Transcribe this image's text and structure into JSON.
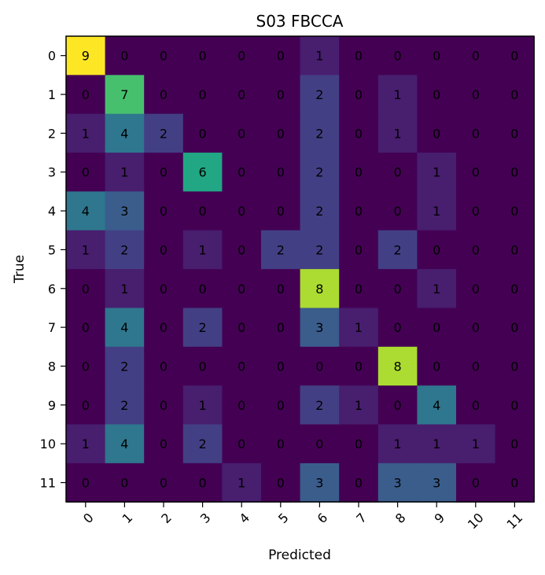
{
  "chart_data": {
    "type": "heatmap",
    "title": "S03 FBCCA",
    "xlabel": "Predicted",
    "ylabel": "True",
    "x_categories": [
      "0",
      "1",
      "2",
      "3",
      "4",
      "5",
      "6",
      "7",
      "8",
      "9",
      "10",
      "11"
    ],
    "y_categories": [
      "0",
      "1",
      "2",
      "3",
      "4",
      "5",
      "6",
      "7",
      "8",
      "9",
      "10",
      "11"
    ],
    "values": [
      [
        9,
        0,
        0,
        0,
        0,
        0,
        1,
        0,
        0,
        0,
        0,
        0
      ],
      [
        0,
        7,
        0,
        0,
        0,
        0,
        2,
        0,
        1,
        0,
        0,
        0
      ],
      [
        1,
        4,
        2,
        0,
        0,
        0,
        2,
        0,
        1,
        0,
        0,
        0
      ],
      [
        0,
        1,
        0,
        6,
        0,
        0,
        2,
        0,
        0,
        1,
        0,
        0
      ],
      [
        4,
        3,
        0,
        0,
        0,
        0,
        2,
        0,
        0,
        1,
        0,
        0
      ],
      [
        1,
        2,
        0,
        1,
        0,
        2,
        2,
        0,
        2,
        0,
        0,
        0
      ],
      [
        0,
        1,
        0,
        0,
        0,
        0,
        8,
        0,
        0,
        1,
        0,
        0
      ],
      [
        0,
        4,
        0,
        2,
        0,
        0,
        3,
        1,
        0,
        0,
        0,
        0
      ],
      [
        0,
        2,
        0,
        0,
        0,
        0,
        0,
        0,
        8,
        0,
        0,
        0
      ],
      [
        0,
        2,
        0,
        1,
        0,
        0,
        2,
        1,
        0,
        4,
        0,
        0
      ],
      [
        1,
        4,
        0,
        2,
        0,
        0,
        0,
        0,
        1,
        1,
        1,
        0
      ],
      [
        0,
        0,
        0,
        0,
        1,
        0,
        3,
        0,
        3,
        3,
        0,
        0
      ]
    ],
    "value_range": [
      0,
      9
    ],
    "colormap": "viridis",
    "grid": false
  }
}
